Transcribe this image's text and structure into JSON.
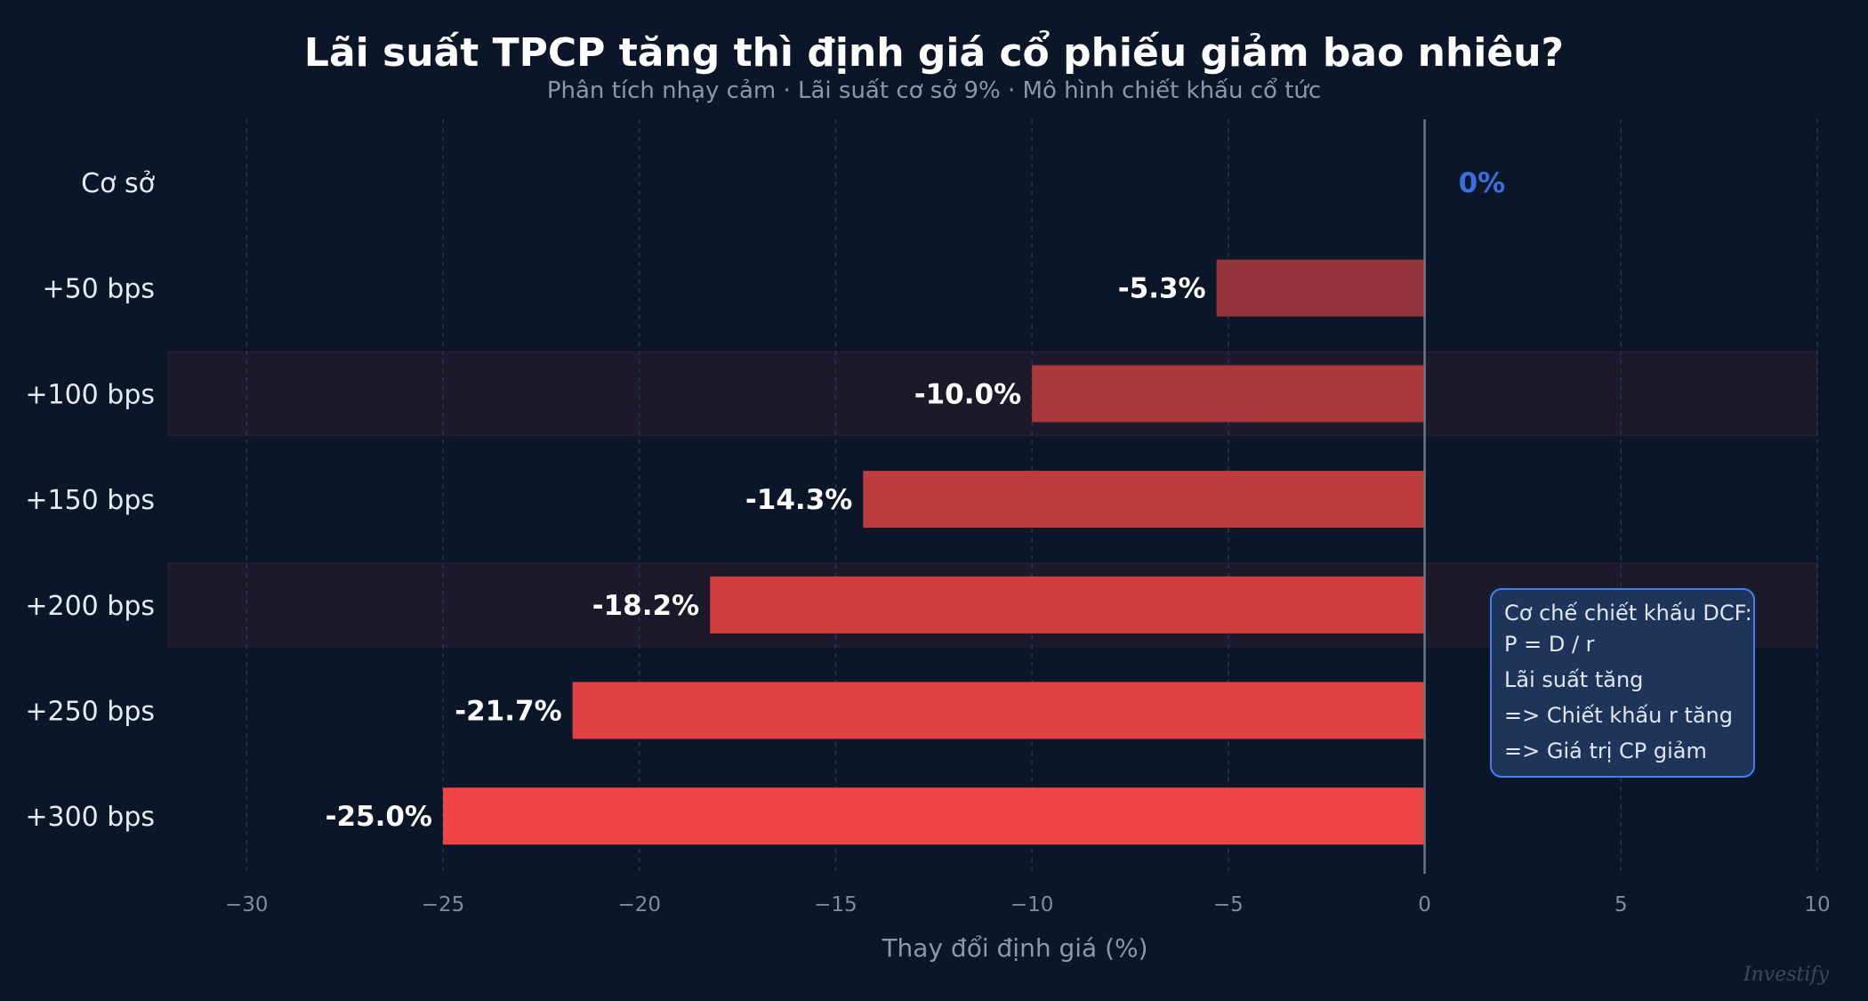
{
  "chart_data": {
    "type": "bar",
    "orientation": "horizontal",
    "title": "Lãi suất TPCP tăng thì định giá cổ phiếu giảm bao nhiêu?",
    "subtitle": "Phân tích nhạy cảm · Lãi suất cơ sở 9% · Mô hình chiết khấu cổ tức",
    "xlabel": "Thay đổi định giá (%)",
    "ylabel": "",
    "xlim": [
      -32,
      10
    ],
    "xticks": [
      -30,
      -25,
      -20,
      -15,
      -10,
      -5,
      0,
      5,
      10
    ],
    "xtick_labels": [
      "−30",
      "−25",
      "−20",
      "−15",
      "−10",
      "−5",
      "0",
      "5",
      "10"
    ],
    "grid": true,
    "categories": [
      "Cơ sở",
      "+50 bps",
      "+100 bps",
      "+150 bps",
      "+200 bps",
      "+250 bps",
      "+300 bps"
    ],
    "values": [
      0,
      -5.3,
      -10.0,
      -14.3,
      -18.2,
      -21.7,
      -25.0
    ],
    "data_labels": [
      "0%",
      "-5.3%",
      "-10.0%",
      "-14.3%",
      "-18.2%",
      "-21.7%",
      "-25.0%"
    ],
    "highlighted_rows": [
      "+100 bps",
      "+200 bps"
    ],
    "colors": {
      "background": "#0b1628",
      "bar_start": "#7d2f37",
      "bar_end": "#ef4444",
      "baseline_label": "#3b6fe0",
      "highlight_band": "#1c1a2a",
      "annotation_bg": "#1e3458",
      "annotation_border": "#3b82f6"
    },
    "annotation": {
      "lines": [
        "Cơ chế chiết khấu DCF:",
        "P = D / r",
        "Lãi suất tăng",
        "=> Chiết khấu r tăng",
        "=> Giá trị CP giảm"
      ]
    },
    "watermark": "Investify"
  }
}
